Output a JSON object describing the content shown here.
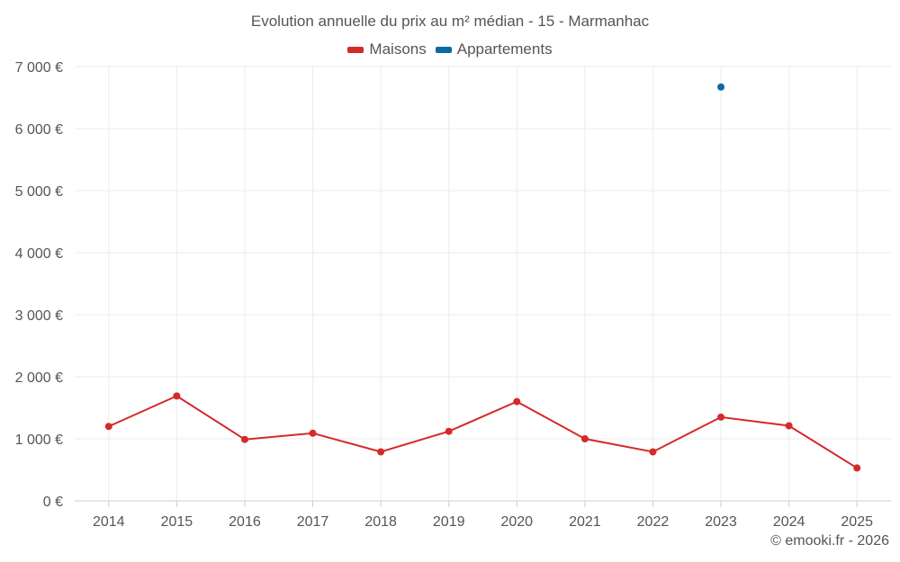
{
  "chart_data": {
    "type": "line",
    "title": "Evolution annuelle du prix au m² médian - 15 - Marmanhac",
    "categories": [
      "2014",
      "2015",
      "2016",
      "2017",
      "2018",
      "2019",
      "2020",
      "2021",
      "2022",
      "2023",
      "2024",
      "2025"
    ],
    "ylim": [
      0,
      7000
    ],
    "yticks": [
      0,
      1000,
      2000,
      3000,
      4000,
      5000,
      6000,
      7000
    ],
    "ytick_labels": [
      "0 €",
      "1 000 €",
      "2 000 €",
      "3 000 €",
      "4 000 €",
      "5 000 €",
      "6 000 €",
      "7 000 €"
    ],
    "grid": true,
    "legend_position": "top",
    "series": [
      {
        "name": "Maisons",
        "color": "#d42a2a",
        "values": [
          1200,
          1690,
          990,
          1090,
          790,
          1120,
          1600,
          1000,
          790,
          1350,
          1210,
          530
        ]
      },
      {
        "name": "Appartements",
        "color": "#0c69a5",
        "values": [
          null,
          null,
          null,
          null,
          null,
          null,
          null,
          null,
          null,
          6670,
          null,
          null
        ]
      }
    ]
  },
  "credit": "© emooki.fr - 2026"
}
